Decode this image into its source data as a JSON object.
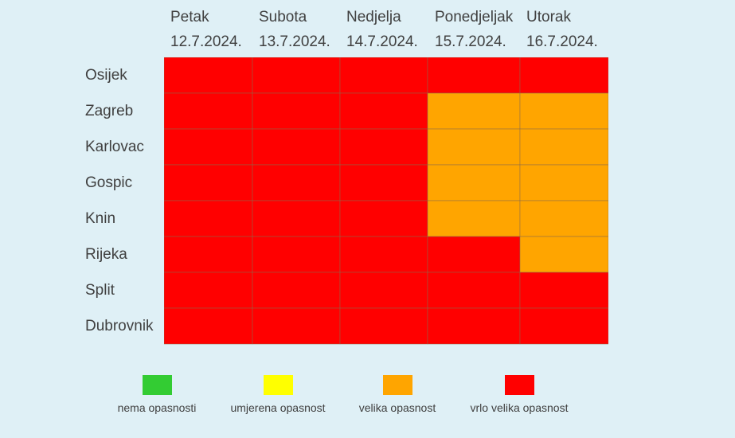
{
  "chart_data": {
    "type": "heatmap",
    "title": "",
    "columns": [
      {
        "day": "Petak",
        "date": "12.7.2024."
      },
      {
        "day": "Subota",
        "date": "13.7.2024."
      },
      {
        "day": "Nedjelja",
        "date": "14.7.2024."
      },
      {
        "day": "Ponedjeljak",
        "date": "15.7.2024."
      },
      {
        "day": "Utorak",
        "date": "16.7.2024."
      }
    ],
    "rows": [
      "Osijek",
      "Zagreb",
      "Karlovac",
      "Gospic",
      "Knin",
      "Rijeka",
      "Split",
      "Dubrovnik"
    ],
    "levels": [
      {
        "label": "nema opasnosti",
        "color": "#33cc33"
      },
      {
        "label": "umjerena opasnost",
        "color": "#ffff00"
      },
      {
        "label": "velika opasnost",
        "color": "#ffa500"
      },
      {
        "label": "vrlo velika opasnost",
        "color": "#ff0000"
      }
    ],
    "values": [
      [
        3,
        3,
        3,
        3,
        3
      ],
      [
        3,
        3,
        3,
        2,
        2
      ],
      [
        3,
        3,
        3,
        2,
        2
      ],
      [
        3,
        3,
        3,
        2,
        2
      ],
      [
        3,
        3,
        3,
        2,
        2
      ],
      [
        3,
        3,
        3,
        3,
        2
      ],
      [
        3,
        3,
        3,
        3,
        3
      ],
      [
        3,
        3,
        3,
        3,
        3
      ]
    ]
  }
}
